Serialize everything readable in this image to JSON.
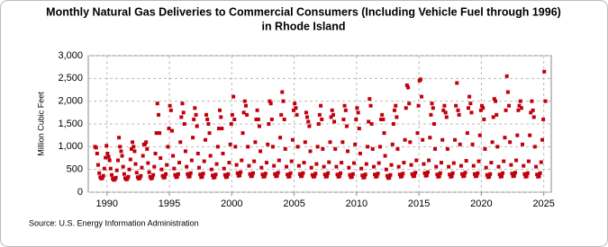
{
  "chart_data": {
    "type": "scatter",
    "title": [
      "Monthly Natural Gas Deliveries to Commercial Consumers (Including Vehicle Fuel through 1996)",
      "in Rhode Island"
    ],
    "y_label": "Million Cubic Feet",
    "source": "Source: U.S. Energy Information Administration",
    "color": "#c0000c",
    "grid": true,
    "xlim": [
      1988.5,
      2025.6
    ],
    "ylim": [
      0,
      3000
    ],
    "xticks": [
      1990,
      1995,
      2000,
      2005,
      2010,
      2015,
      2020,
      2025
    ],
    "yticks": [
      0,
      {
        "value": 500,
        "label": "500"
      },
      {
        "value": 1000,
        "label": "1,000"
      },
      {
        "value": 1500,
        "label": "1,500"
      },
      {
        "value": 2000,
        "label": "2,000"
      },
      {
        "value": 2500,
        "label": "2,500"
      },
      {
        "value": 3000,
        "label": "3,000"
      }
    ],
    "x": [
      1989.04,
      1989.13,
      1989.21,
      1989.29,
      1989.38,
      1989.46,
      1989.54,
      1989.63,
      1989.71,
      1989.79,
      1989.88,
      1989.96,
      1990.04,
      1990.13,
      1990.21,
      1990.29,
      1990.38,
      1990.46,
      1990.54,
      1990.63,
      1990.71,
      1990.79,
      1990.88,
      1990.96,
      1991.04,
      1991.13,
      1991.21,
      1991.29,
      1991.38,
      1991.46,
      1991.54,
      1991.63,
      1991.71,
      1991.79,
      1991.88,
      1991.96,
      1992.04,
      1992.13,
      1992.21,
      1992.29,
      1992.38,
      1992.46,
      1992.54,
      1992.63,
      1992.71,
      1992.79,
      1992.88,
      1992.96,
      1993.04,
      1993.13,
      1993.21,
      1993.29,
      1993.38,
      1993.46,
      1993.54,
      1993.63,
      1993.71,
      1993.79,
      1993.88,
      1993.96,
      1994.04,
      1994.13,
      1994.21,
      1994.29,
      1994.38,
      1994.46,
      1994.54,
      1994.63,
      1994.71,
      1994.79,
      1994.88,
      1994.96,
      1995.04,
      1995.13,
      1995.21,
      1995.29,
      1995.38,
      1995.46,
      1995.54,
      1995.63,
      1995.71,
      1995.79,
      1995.88,
      1995.96,
      1996.04,
      1996.13,
      1996.21,
      1996.29,
      1996.38,
      1996.46,
      1996.54,
      1996.63,
      1996.71,
      1996.79,
      1996.88,
      1996.96,
      1997.04,
      1997.13,
      1997.21,
      1997.29,
      1997.38,
      1997.46,
      1997.54,
      1997.63,
      1997.71,
      1997.79,
      1997.88,
      1997.96,
      1998.04,
      1998.13,
      1998.21,
      1998.29,
      1998.38,
      1998.46,
      1998.54,
      1998.63,
      1998.71,
      1998.79,
      1998.88,
      1998.96,
      1999.04,
      1999.13,
      1999.21,
      1999.29,
      1999.38,
      1999.46,
      1999.54,
      1999.63,
      1999.71,
      1999.79,
      1999.88,
      1999.96,
      2000.04,
      2000.13,
      2000.21,
      2000.29,
      2000.38,
      2000.46,
      2000.54,
      2000.63,
      2000.71,
      2000.79,
      2000.88,
      2000.96,
      2001.04,
      2001.13,
      2001.21,
      2001.29,
      2001.38,
      2001.46,
      2001.54,
      2001.63,
      2001.71,
      2001.79,
      2001.88,
      2001.96,
      2002.04,
      2002.13,
      2002.21,
      2002.29,
      2002.38,
      2002.46,
      2002.54,
      2002.63,
      2002.71,
      2002.79,
      2002.88,
      2002.96,
      2003.04,
      2003.13,
      2003.21,
      2003.29,
      2003.38,
      2003.46,
      2003.54,
      2003.63,
      2003.71,
      2003.79,
      2003.88,
      2003.96,
      2004.04,
      2004.13,
      2004.21,
      2004.29,
      2004.38,
      2004.46,
      2004.54,
      2004.63,
      2004.71,
      2004.79,
      2004.88,
      2004.96,
      2005.04,
      2005.13,
      2005.21,
      2005.29,
      2005.38,
      2005.46,
      2005.54,
      2005.63,
      2005.71,
      2005.79,
      2005.88,
      2005.96,
      2006.04,
      2006.13,
      2006.21,
      2006.29,
      2006.38,
      2006.46,
      2006.54,
      2006.63,
      2006.71,
      2006.79,
      2006.88,
      2006.96,
      2007.04,
      2007.13,
      2007.21,
      2007.29,
      2007.38,
      2007.46,
      2007.54,
      2007.63,
      2007.71,
      2007.79,
      2007.88,
      2007.96,
      2008.04,
      2008.13,
      2008.21,
      2008.29,
      2008.38,
      2008.46,
      2008.54,
      2008.63,
      2008.71,
      2008.79,
      2008.88,
      2008.96,
      2009.04,
      2009.13,
      2009.21,
      2009.29,
      2009.38,
      2009.46,
      2009.54,
      2009.63,
      2009.71,
      2009.79,
      2009.88,
      2009.96,
      2010.04,
      2010.13,
      2010.21,
      2010.29,
      2010.38,
      2010.46,
      2010.54,
      2010.63,
      2010.71,
      2010.79,
      2010.88,
      2010.96,
      2011.04,
      2011.13,
      2011.21,
      2011.29,
      2011.38,
      2011.46,
      2011.54,
      2011.63,
      2011.71,
      2011.79,
      2011.88,
      2011.96,
      2012.04,
      2012.13,
      2012.21,
      2012.29,
      2012.38,
      2012.46,
      2012.54,
      2012.63,
      2012.71,
      2012.79,
      2012.88,
      2012.96,
      2013.04,
      2013.13,
      2013.21,
      2013.29,
      2013.38,
      2013.46,
      2013.54,
      2013.63,
      2013.71,
      2013.79,
      2013.88,
      2013.96,
      2014.04,
      2014.13,
      2014.21,
      2014.29,
      2014.38,
      2014.46,
      2014.54,
      2014.63,
      2014.71,
      2014.79,
      2014.88,
      2014.96,
      2015.04,
      2015.13,
      2015.21,
      2015.29,
      2015.38,
      2015.46,
      2015.54,
      2015.63,
      2015.71,
      2015.79,
      2015.88,
      2015.96,
      2016.04,
      2016.13,
      2016.21,
      2016.29,
      2016.38,
      2016.46,
      2016.54,
      2016.63,
      2016.71,
      2016.79,
      2016.88,
      2016.96,
      2017.04,
      2017.13,
      2017.21,
      2017.29,
      2017.38,
      2017.46,
      2017.54,
      2017.63,
      2017.71,
      2017.79,
      2017.88,
      2017.96,
      2018.04,
      2018.13,
      2018.21,
      2018.29,
      2018.38,
      2018.46,
      2018.54,
      2018.63,
      2018.71,
      2018.79,
      2018.88,
      2018.96,
      2019.04,
      2019.13,
      2019.21,
      2019.29,
      2019.38,
      2019.46,
      2019.54,
      2019.63,
      2019.71,
      2019.79,
      2019.88,
      2019.96,
      2020.04,
      2020.13,
      2020.21,
      2020.29,
      2020.38,
      2020.46,
      2020.54,
      2020.63,
      2020.71,
      2020.79,
      2020.88,
      2020.96,
      2021.04,
      2021.13,
      2021.21,
      2021.29,
      2021.38,
      2021.46,
      2021.54,
      2021.63,
      2021.71,
      2021.79,
      2021.88,
      2021.96,
      2022.04,
      2022.13,
      2022.21,
      2022.29,
      2022.38,
      2022.46,
      2022.54,
      2022.63,
      2022.71,
      2022.79,
      2022.88,
      2022.96,
      2023.04,
      2023.13,
      2023.21,
      2023.29,
      2023.38,
      2023.46,
      2023.54,
      2023.63,
      2023.71,
      2023.79,
      2023.88,
      2023.96,
      2024.04,
      2024.13,
      2024.21,
      2024.29,
      2024.38,
      2024.46,
      2024.54,
      2024.63,
      2024.71,
      2024.79,
      2024.88,
      2024.96,
      2025.04,
      2025.13
    ],
    "values": [
      1000,
      980,
      850,
      600,
      420,
      330,
      300,
      310,
      360,
      520,
      760,
      1020,
      850,
      780,
      700,
      520,
      380,
      300,
      270,
      280,
      320,
      480,
      700,
      1200,
      1000,
      900,
      800,
      560,
      400,
      310,
      280,
      290,
      340,
      500,
      720,
      950,
      1100,
      1000,
      900,
      620,
      430,
      330,
      300,
      310,
      360,
      540,
      800,
      1050,
      1050,
      1100,
      950,
      640,
      440,
      340,
      300,
      320,
      380,
      560,
      850,
      1300,
      1950,
      1700,
      1300,
      750,
      500,
      360,
      320,
      330,
      400,
      600,
      1000,
      1400,
      1900,
      1800,
      1350,
      800,
      520,
      380,
      330,
      340,
      400,
      650,
      1100,
      1650,
      1950,
      1750,
      1500,
      900,
      560,
      400,
      340,
      350,
      420,
      700,
      1200,
      1600,
      1850,
      1700,
      1450,
      850,
      540,
      390,
      330,
      340,
      410,
      680,
      1150,
      1700,
      1600,
      1500,
      1300,
      800,
      500,
      370,
      320,
      330,
      390,
      620,
      1000,
      1400,
      1800,
      1650,
      1400,
      850,
      520,
      380,
      330,
      340,
      400,
      650,
      1050,
      1500,
      1700,
      2100,
      1600,
      1000,
      600,
      420,
      360,
      370,
      440,
      700,
      1300,
      1750,
      2000,
      1900,
      1700,
      1000,
      580,
      400,
      350,
      360,
      420,
      680,
      1100,
      1600,
      1800,
      1600,
      1450,
      900,
      540,
      390,
      340,
      350,
      410,
      650,
      1050,
      1500,
      2000,
      1950,
      1600,
      1000,
      580,
      400,
      350,
      360,
      430,
      700,
      1200,
      1700,
      2200,
      2000,
      1600,
      950,
      560,
      390,
      340,
      350,
      420,
      680,
      1150,
      1800,
      1950,
      1850,
      1700,
      1000,
      580,
      400,
      350,
      360,
      420,
      650,
      1100,
      1750,
      1650,
      1550,
      1450,
      900,
      540,
      380,
      340,
      350,
      410,
      620,
      1000,
      1500,
      1700,
      1900,
      1600,
      950,
      560,
      390,
      340,
      350,
      420,
      660,
      1100,
      1650,
      1800,
      1700,
      1550,
      950,
      560,
      390,
      340,
      350,
      420,
      650,
      1100,
      1600,
      1900,
      1800,
      1450,
      900,
      540,
      380,
      330,
      340,
      400,
      640,
      1050,
      1600,
      1850,
      1750,
      1400,
      850,
      520,
      370,
      320,
      330,
      390,
      620,
      1000,
      1550,
      2050,
      1900,
      1500,
      950,
      560,
      390,
      340,
      350,
      410,
      640,
      1000,
      1600,
      1700,
      1600,
      1300,
      800,
      500,
      360,
      310,
      320,
      380,
      600,
      1050,
      1500,
      1800,
      1900,
      1650,
      950,
      560,
      390,
      340,
      350,
      410,
      650,
      1150,
      1850,
      2350,
      2300,
      1950,
      1100,
      600,
      400,
      350,
      360,
      430,
      700,
      1300,
      1900,
      2450,
      2480,
      2100,
      1150,
      620,
      420,
      360,
      370,
      440,
      700,
      1200,
      1700,
      1950,
      1850,
      1500,
      950,
      560,
      390,
      340,
      350,
      420,
      650,
      1150,
      1800,
      1900,
      1750,
      1650,
      950,
      560,
      390,
      340,
      350,
      420,
      640,
      1150,
      1900,
      2400,
      1800,
      1700,
      1050,
      580,
      400,
      350,
      360,
      430,
      690,
      1300,
      1850,
      2100,
      1950,
      1750,
      1050,
      580,
      400,
      350,
      360,
      420,
      680,
      1250,
      1800,
      1900,
      1850,
      1600,
      950,
      540,
      380,
      330,
      340,
      400,
      650,
      1100,
      1650,
      2050,
      2000,
      1700,
      1000,
      560,
      390,
      340,
      350,
      420,
      680,
      1200,
      1800,
      2550,
      2200,
      1900,
      1100,
      600,
      410,
      350,
      360,
      430,
      700,
      1250,
      1800,
      1900,
      2000,
      1850,
      1050,
      580,
      400,
      340,
      350,
      420,
      680,
      1250,
      1750,
      2000,
      1800,
      1650,
      1000,
      560,
      390,
      340,
      350,
      420,
      660,
      1150,
      1600,
      2650,
      2000
    ]
  }
}
